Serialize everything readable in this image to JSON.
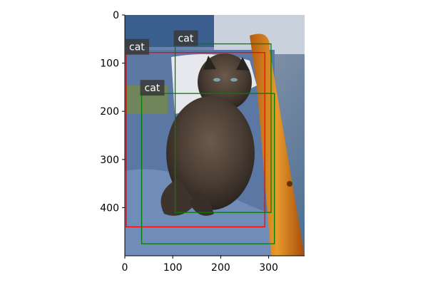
{
  "image": {
    "description_tags": [
      "cat-photo"
    ],
    "width_units": 375,
    "height_units": 500
  },
  "axes": {
    "x_ticks": [
      0,
      100,
      200,
      300
    ],
    "y_ticks": [
      0,
      100,
      200,
      300,
      400
    ],
    "xlim": [
      0,
      375
    ],
    "ylim": [
      500,
      0
    ]
  },
  "detections": [
    {
      "label": "cat",
      "color": "#ff0000",
      "x1": 3,
      "y1": 78,
      "x2": 292,
      "y2": 440,
      "show_label": true
    },
    {
      "label": "cat",
      "color": "#008000",
      "x1": 105,
      "y1": 60,
      "x2": 305,
      "y2": 410,
      "show_label": true
    },
    {
      "label": "cat",
      "color": "#008000",
      "x1": 35,
      "y1": 163,
      "x2": 312,
      "y2": 475,
      "show_label": true
    }
  ],
  "label_style": {
    "text_color": "#ffffff",
    "bg_color": "#3a3a3a"
  }
}
